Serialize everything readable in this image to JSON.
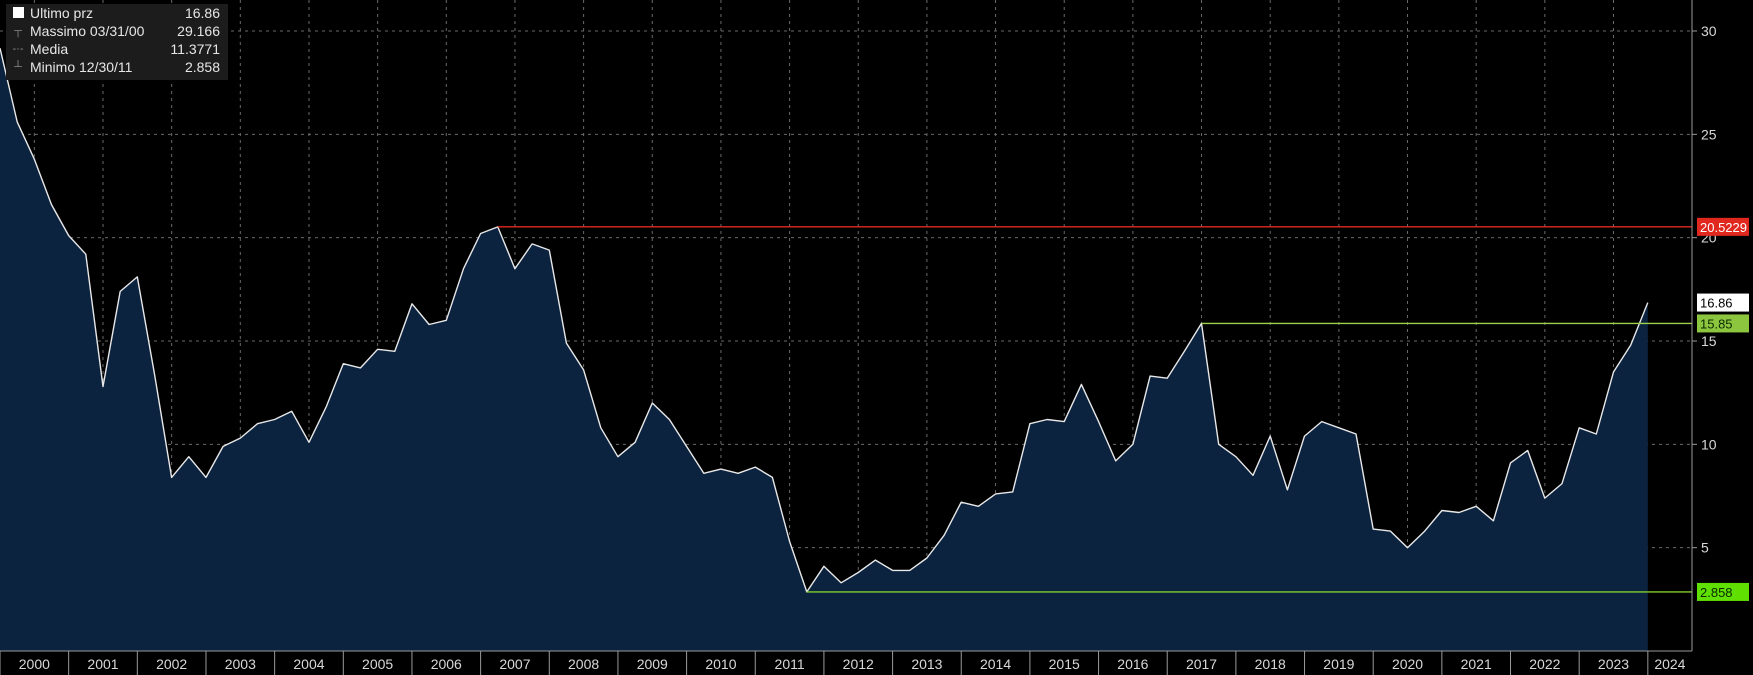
{
  "legend": {
    "rows": [
      {
        "label": "Ultimo prz",
        "value": "16.86"
      },
      {
        "label": "Massimo 03/31/00",
        "value": "29.166"
      },
      {
        "label": "Media",
        "value": "11.3771"
      },
      {
        "label": "Minimo 12/30/11",
        "value": "2.858"
      }
    ]
  },
  "chart_data": {
    "type": "area",
    "x": [
      2000.0,
      2000.25,
      2000.5,
      2000.75,
      2001.0,
      2001.25,
      2001.5,
      2001.75,
      2002.0,
      2002.25,
      2002.5,
      2002.75,
      2003.0,
      2003.25,
      2003.5,
      2003.75,
      2004.0,
      2004.25,
      2004.5,
      2004.75,
      2005.0,
      2005.25,
      2005.5,
      2005.75,
      2006.0,
      2006.25,
      2006.5,
      2006.75,
      2007.0,
      2007.25,
      2007.5,
      2007.75,
      2008.0,
      2008.25,
      2008.5,
      2008.75,
      2009.0,
      2009.25,
      2009.5,
      2009.75,
      2010.0,
      2010.25,
      2010.5,
      2010.75,
      2011.0,
      2011.25,
      2011.5,
      2011.75,
      2012.0,
      2012.25,
      2012.5,
      2012.75,
      2013.0,
      2013.25,
      2013.5,
      2013.75,
      2014.0,
      2014.25,
      2014.5,
      2014.75,
      2015.0,
      2015.25,
      2015.5,
      2015.75,
      2016.0,
      2016.25,
      2016.5,
      2016.75,
      2017.0,
      2017.25,
      2017.5,
      2017.75,
      2018.0,
      2018.25,
      2018.5,
      2018.75,
      2019.0,
      2019.25,
      2019.5,
      2019.75,
      2020.0,
      2020.25,
      2020.5,
      2020.75,
      2021.0,
      2021.25,
      2021.5,
      2021.75,
      2022.0,
      2022.25,
      2022.5,
      2022.75,
      2023.0,
      2023.25,
      2023.5,
      2023.75,
      2024.0
    ],
    "y": [
      29.166,
      25.6,
      23.8,
      21.6,
      20.1,
      19.2,
      12.8,
      17.4,
      18.1,
      13.4,
      8.4,
      9.4,
      8.4,
      9.9,
      10.3,
      11.0,
      11.2,
      11.6,
      10.1,
      11.8,
      13.9,
      13.7,
      14.6,
      14.5,
      16.8,
      15.8,
      16.0,
      18.5,
      20.2,
      20.5229,
      18.5,
      19.7,
      19.4,
      14.9,
      13.6,
      10.8,
      9.4,
      10.1,
      12.0,
      11.2,
      9.9,
      8.6,
      8.8,
      8.6,
      8.9,
      8.4,
      5.3,
      2.858,
      4.1,
      3.3,
      3.8,
      4.4,
      3.9,
      3.9,
      4.5,
      5.6,
      7.2,
      7.0,
      7.6,
      7.7,
      11.0,
      11.2,
      11.1,
      12.9,
      11.1,
      9.2,
      10.0,
      13.3,
      13.2,
      14.5,
      15.85,
      10.0,
      9.4,
      8.5,
      10.4,
      7.8,
      10.4,
      11.1,
      10.8,
      10.5,
      5.9,
      5.8,
      5.0,
      5.8,
      6.8,
      6.7,
      7.0,
      6.3,
      9.1,
      9.7,
      7.4,
      8.1,
      10.8,
      10.5,
      13.5,
      14.8,
      16.86
    ],
    "x_ticks": [
      "2000",
      "2001",
      "2002",
      "2003",
      "2004",
      "2005",
      "2006",
      "2007",
      "2008",
      "2009",
      "2010",
      "2011",
      "2012",
      "2013",
      "2014",
      "2015",
      "2016",
      "2017",
      "2018",
      "2019",
      "2020",
      "2021",
      "2022",
      "2023",
      "2024"
    ],
    "y_ticks": [
      5,
      10,
      15,
      20,
      25,
      30
    ],
    "ylim": [
      0,
      31.5
    ],
    "xlim": [
      2000,
      2024.25
    ],
    "reference_lines": [
      {
        "value": 20.5229,
        "label": "20.5229",
        "from_x": 2007.25,
        "color": "#e0281e",
        "label_bg": "#e0281e",
        "label_color": "#ffffff"
      },
      {
        "value": 15.85,
        "label": "15.85",
        "from_x": 2017.5,
        "color": "#9ed24a",
        "label_bg": "#8cc63f",
        "label_color": "#0a2a00"
      },
      {
        "value": 2.858,
        "label": "2.858",
        "from_x": 2011.75,
        "color": "#7fcf2a",
        "label_bg": "#5fe000",
        "label_color": "#0a2a00"
      }
    ],
    "last_value_label": {
      "value": 16.86,
      "label": "16.86"
    },
    "line_color": "#e8e8e8",
    "fill_color": "#0c2340",
    "grid": true,
    "legend_position": "top-left"
  }
}
